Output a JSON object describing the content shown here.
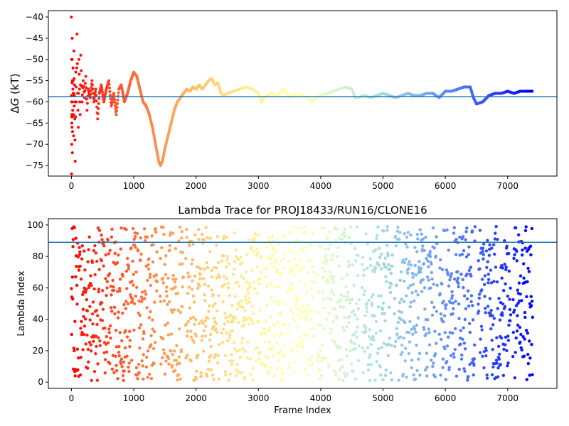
{
  "chart_data": [
    {
      "type": "scatter",
      "title": "",
      "xlabel": "",
      "ylabel": "ΔG (kT)",
      "ylabel_math": {
        "symbol": "Δ",
        "italic": "G",
        "rest": " (kT)"
      },
      "xlim": [
        -370,
        7790
      ],
      "ylim": [
        -77.5,
        -38.5
      ],
      "xticks": [
        0,
        1000,
        2000,
        3000,
        4000,
        5000,
        6000,
        7000
      ],
      "xtick_labels": [
        "0",
        "1000",
        "2000",
        "3000",
        "4000",
        "5000",
        "6000",
        "7000"
      ],
      "yticks": [
        -40,
        -45,
        -50,
        -55,
        -60,
        -65,
        -70,
        -75
      ],
      "ytick_labels": [
        "−40",
        "−45",
        "−50",
        "−55",
        "−60",
        "−65",
        "−70",
        "−75"
      ],
      "hline": -58.8,
      "hline_color": "#1f77b4",
      "colormap": "rainbow (red at frame 0 → violet at last frame)",
      "grid": false,
      "legend": "none",
      "trace_points": [
        [
          0,
          -40
        ],
        [
          2,
          -77
        ],
        [
          4,
          -50
        ],
        [
          6,
          -70
        ],
        [
          8,
          -60
        ],
        [
          10,
          -66
        ],
        [
          12,
          -45
        ],
        [
          14,
          -55
        ],
        [
          16,
          -72
        ],
        [
          20,
          -62
        ],
        [
          25,
          -52
        ],
        [
          30,
          -58
        ],
        [
          35,
          -68
        ],
        [
          40,
          -48
        ],
        [
          45,
          -61
        ],
        [
          50,
          -56
        ],
        [
          55,
          -64
        ],
        [
          60,
          -74
        ],
        [
          70,
          -53
        ],
        [
          80,
          -60
        ],
        [
          90,
          -44
        ],
        [
          100,
          -58
        ],
        [
          110,
          -66
        ],
        [
          120,
          -50
        ],
        [
          130,
          -57
        ],
        [
          140,
          -63
        ],
        [
          150,
          -49
        ],
        [
          170,
          -60
        ],
        [
          190,
          -55
        ],
        [
          210,
          -59
        ],
        [
          230,
          -54
        ],
        [
          250,
          -62
        ],
        [
          270,
          -57
        ],
        [
          300,
          -59
        ],
        [
          330,
          -55
        ],
        [
          360,
          -60
        ],
        [
          390,
          -57
        ],
        [
          420,
          -64
        ],
        [
          450,
          -58
        ],
        [
          480,
          -56
        ],
        [
          520,
          -60
        ],
        [
          560,
          -57
        ],
        [
          600,
          -55
        ],
        [
          640,
          -61
        ],
        [
          680,
          -58
        ],
        [
          720,
          -63
        ],
        [
          760,
          -57
        ],
        [
          800,
          -56
        ],
        [
          850,
          -60
        ],
        [
          900,
          -58
        ],
        [
          950,
          -55
        ],
        [
          1000,
          -53
        ],
        [
          1050,
          -54
        ],
        [
          1100,
          -57
        ],
        [
          1150,
          -60
        ],
        [
          1200,
          -61
        ],
        [
          1250,
          -63
        ],
        [
          1300,
          -66
        ],
        [
          1350,
          -70
        ],
        [
          1400,
          -74
        ],
        [
          1430,
          -75
        ],
        [
          1460,
          -74
        ],
        [
          1500,
          -71
        ],
        [
          1550,
          -68
        ],
        [
          1600,
          -65
        ],
        [
          1650,
          -62
        ],
        [
          1700,
          -60
        ],
        [
          1750,
          -59
        ],
        [
          1800,
          -58
        ],
        [
          1850,
          -57
        ],
        [
          1900,
          -57.5
        ],
        [
          1950,
          -56.5
        ],
        [
          2000,
          -57
        ],
        [
          2050,
          -56
        ],
        [
          2100,
          -57
        ],
        [
          2150,
          -56
        ],
        [
          2200,
          -55
        ],
        [
          2250,
          -54.5
        ],
        [
          2300,
          -56
        ],
        [
          2350,
          -55.5
        ],
        [
          2400,
          -58
        ],
        [
          2450,
          -58.5
        ],
        [
          2500,
          -58
        ],
        [
          2600,
          -57.5
        ],
        [
          2700,
          -57
        ],
        [
          2800,
          -56.5
        ],
        [
          2900,
          -57
        ],
        [
          3000,
          -58
        ],
        [
          3050,
          -60
        ],
        [
          3100,
          -59
        ],
        [
          3200,
          -58
        ],
        [
          3300,
          -58.5
        ],
        [
          3400,
          -57
        ],
        [
          3500,
          -59
        ],
        [
          3600,
          -58
        ],
        [
          3700,
          -58.5
        ],
        [
          3800,
          -59
        ],
        [
          3850,
          -60
        ],
        [
          3900,
          -59.5
        ],
        [
          4000,
          -58.5
        ],
        [
          4100,
          -58
        ],
        [
          4200,
          -57.5
        ],
        [
          4300,
          -57
        ],
        [
          4400,
          -56.5
        ],
        [
          4500,
          -57
        ],
        [
          4550,
          -59
        ],
        [
          4600,
          -59
        ],
        [
          4700,
          -58.5
        ],
        [
          4800,
          -59
        ],
        [
          4900,
          -58.5
        ],
        [
          5000,
          -58
        ],
        [
          5100,
          -58.5
        ],
        [
          5200,
          -59
        ],
        [
          5300,
          -58.5
        ],
        [
          5400,
          -58
        ],
        [
          5500,
          -58.5
        ],
        [
          5600,
          -58.5
        ],
        [
          5700,
          -58
        ],
        [
          5800,
          -58
        ],
        [
          5900,
          -59
        ],
        [
          6000,
          -57.5
        ],
        [
          6100,
          -57.5
        ],
        [
          6200,
          -57
        ],
        [
          6300,
          -56.5
        ],
        [
          6400,
          -56.5
        ],
        [
          6450,
          -59
        ],
        [
          6500,
          -60.5
        ],
        [
          6600,
          -60
        ],
        [
          6700,
          -58.5
        ],
        [
          6800,
          -58
        ],
        [
          6900,
          -58
        ],
        [
          7000,
          -57.5
        ],
        [
          7100,
          -58
        ],
        [
          7200,
          -57.5
        ],
        [
          7300,
          -57.5
        ],
        [
          7400,
          -57.5
        ]
      ]
    },
    {
      "type": "scatter",
      "title": "Lambda Trace for PROJ18433/RUN16/CLONE16",
      "xlabel": "Frame Index",
      "ylabel": "Lambda Index",
      "xlim": [
        -370,
        7790
      ],
      "ylim": [
        -4,
        104
      ],
      "xticks": [
        0,
        1000,
        2000,
        3000,
        4000,
        5000,
        6000,
        7000
      ],
      "xtick_labels": [
        "0",
        "1000",
        "2000",
        "3000",
        "4000",
        "5000",
        "6000",
        "7000"
      ],
      "yticks": [
        0,
        20,
        40,
        60,
        80,
        100
      ],
      "ytick_labels": [
        "0",
        "20",
        "40",
        "60",
        "80",
        "100"
      ],
      "hline": 89,
      "hline_color": "#1f77b4",
      "colormap": "rainbow (red at frame 0 → violet at last frame)",
      "grid": false,
      "legend": "none",
      "frame_range": [
        0,
        7400
      ],
      "lambda_range": [
        1,
        99
      ]
    }
  ]
}
